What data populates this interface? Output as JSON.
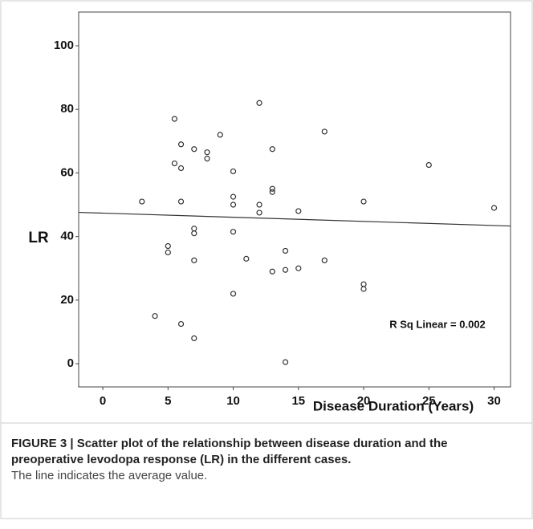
{
  "chart_data": {
    "type": "scatter",
    "xlabel": "Disease Duration (Years)",
    "ylabel": "LR",
    "annotation": "R Sq Linear = 0.002",
    "caption_title": "FIGURE 3 | Scatter plot of the relationship between disease duration and the preoperative levodopa response (LR) in the different cases.",
    "caption_note": "The line indicates the average value.",
    "x": [
      5.5,
      12,
      6,
      7,
      9,
      8,
      8,
      5.5,
      6,
      13,
      17,
      25,
      10,
      3,
      6,
      10,
      10,
      12,
      12,
      13,
      13,
      15,
      20,
      30,
      7,
      7,
      10,
      5,
      5,
      7,
      11,
      14,
      13,
      14,
      15,
      17,
      20,
      20,
      10,
      4,
      6,
      7,
      14
    ],
    "values": [
      77,
      82,
      69,
      67.5,
      72,
      66.5,
      64.5,
      63,
      61.5,
      67.5,
      73,
      62.5,
      60.5,
      51,
      51,
      52.5,
      50,
      50,
      47.5,
      55,
      54,
      48,
      51,
      49,
      42.5,
      41,
      41.5,
      37,
      35,
      32.5,
      33,
      35.5,
      29,
      29.5,
      30,
      32.5,
      25,
      23.5,
      22,
      15,
      12.5,
      8,
      0.5
    ],
    "color": "#333333",
    "fit_line": {
      "x": [
        -1.85,
        31.26
      ],
      "y": [
        47.6,
        43.3
      ],
      "color": "#333333"
    },
    "xlim": [
      -1.85,
      31.26
    ],
    "xticks": [
      0,
      5,
      10,
      15,
      20,
      25,
      30
    ],
    "ylim": [
      -7.3,
      110.6
    ],
    "yticks": [
      0,
      20,
      40,
      60,
      80,
      100
    ]
  }
}
